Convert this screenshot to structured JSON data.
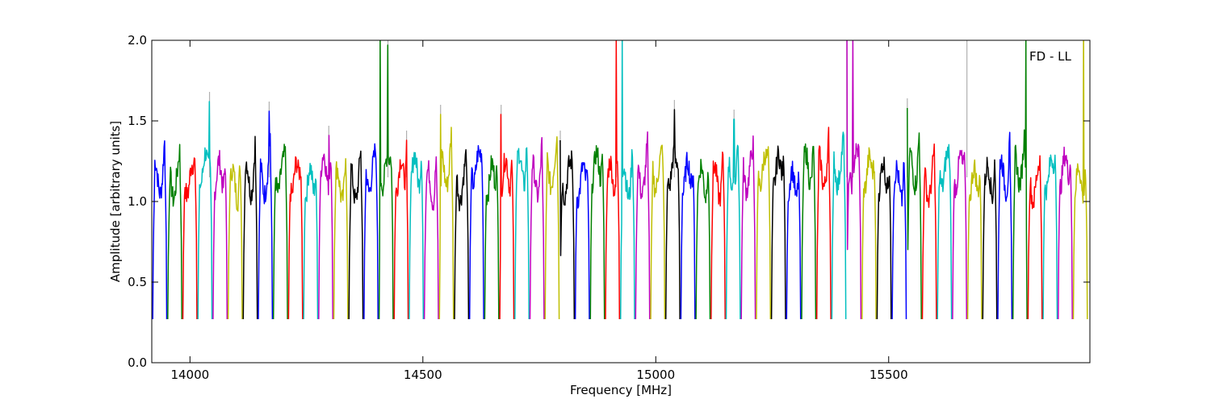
{
  "chart_data": {
    "type": "line",
    "title": "",
    "xlabel": "Frequency [MHz]",
    "ylabel": "Amplitude [arbitrary units]",
    "xlim": [
      13918,
      15932
    ],
    "ylim": [
      0.0,
      2.0
    ],
    "x_ticks": [
      14000,
      14500,
      15000,
      15500
    ],
    "y_ticks": [
      0.0,
      0.5,
      1.0,
      1.5,
      2.0
    ],
    "y_tick_labels": [
      "0.0",
      "0.5",
      "1.0",
      "1.5",
      "2.0"
    ],
    "grid": false,
    "annotation": {
      "text": "FD - LL",
      "position": "top-right"
    },
    "series_colors": [
      "#0000ff",
      "#008000",
      "#ff0000",
      "#00bfbf",
      "#bf00bf",
      "#bfbf00",
      "#000000"
    ],
    "spur_color": "#b0b0b0",
    "channel_start": 13920,
    "channel_width": 32.4,
    "channel_count": 62,
    "baseline": 1.15,
    "edge_min": 0.27,
    "peaks": [
      {
        "x": 14042,
        "y": 1.62
      },
      {
        "x": 14170,
        "y": 1.56
      },
      {
        "x": 14298,
        "y": 1.41
      },
      {
        "x": 14408,
        "y": 2.0
      },
      {
        "x": 14425,
        "y": 1.97
      },
      {
        "x": 14465,
        "y": 1.38
      },
      {
        "x": 14538,
        "y": 1.54
      },
      {
        "x": 14668,
        "y": 1.54
      },
      {
        "x": 14795,
        "y": 1.38
      },
      {
        "x": 14915,
        "y": 2.0
      },
      {
        "x": 14928,
        "y": 2.0
      },
      {
        "x": 15040,
        "y": 1.57
      },
      {
        "x": 15168,
        "y": 1.51
      },
      {
        "x": 15410,
        "y": 2.0
      },
      {
        "x": 15423,
        "y": 2.0
      },
      {
        "x": 15540,
        "y": 1.58
      },
      {
        "x": 15668,
        "y": 2.0
      },
      {
        "x": 15795,
        "y": 2.0
      },
      {
        "x": 15918,
        "y": 2.0
      }
    ]
  }
}
